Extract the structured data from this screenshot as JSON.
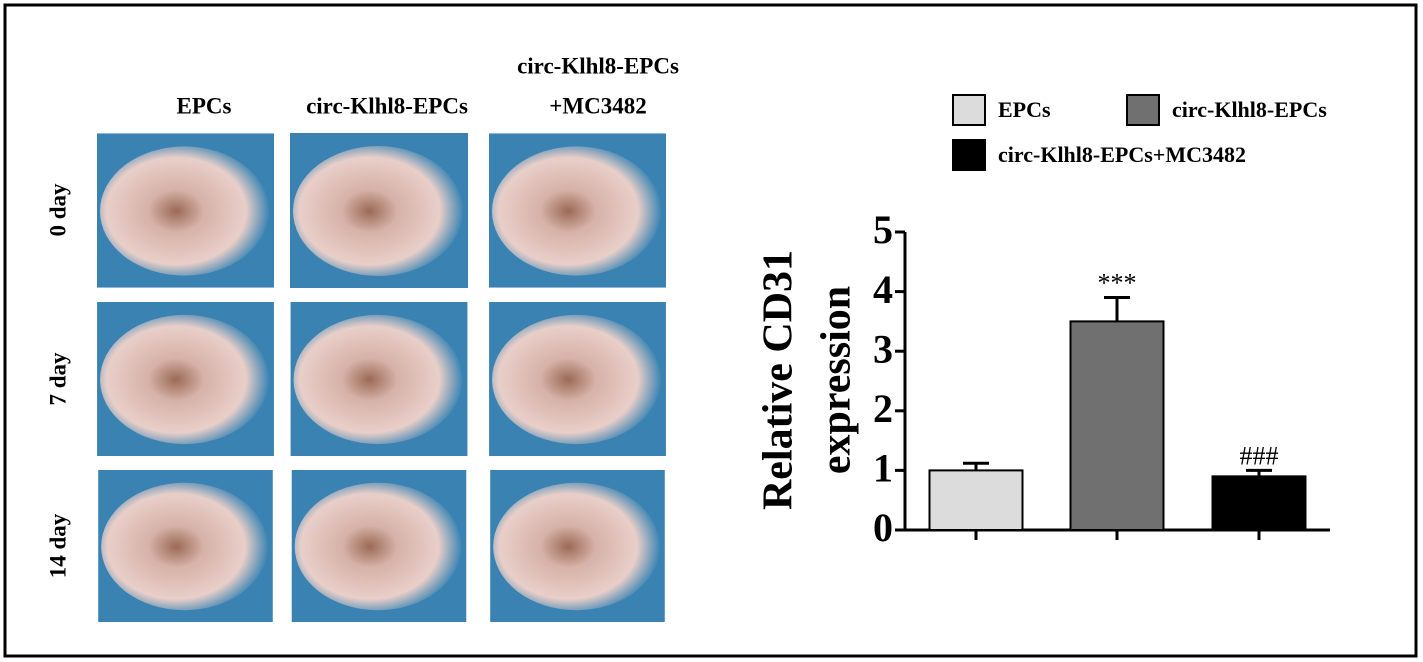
{
  "photo_panel": {
    "column_labels": [
      [
        "EPCs"
      ],
      [
        "circ-Klhl8-EPCs"
      ],
      [
        "circ-Klhl8-EPCs",
        "+MC3482"
      ]
    ],
    "row_labels": [
      "0 day",
      "7 day",
      "14 day"
    ]
  },
  "chart_data": {
    "type": "bar",
    "y_label": [
      "Relative CD31",
      "expression"
    ],
    "categories": [
      "EPCs",
      "circ-Klhl8-EPCs",
      "circ-Klhl8-EPCs+MC3482"
    ],
    "values": [
      1.0,
      3.5,
      0.9
    ],
    "errors": [
      0.12,
      0.4,
      0.1
    ],
    "significance": [
      null,
      "***",
      "###"
    ],
    "colors": [
      "#dcdcdc",
      "#707070",
      "#000000"
    ],
    "ylim": [
      0,
      5
    ],
    "yticks": [
      0,
      1,
      2,
      3,
      4,
      5
    ],
    "grid": false
  }
}
